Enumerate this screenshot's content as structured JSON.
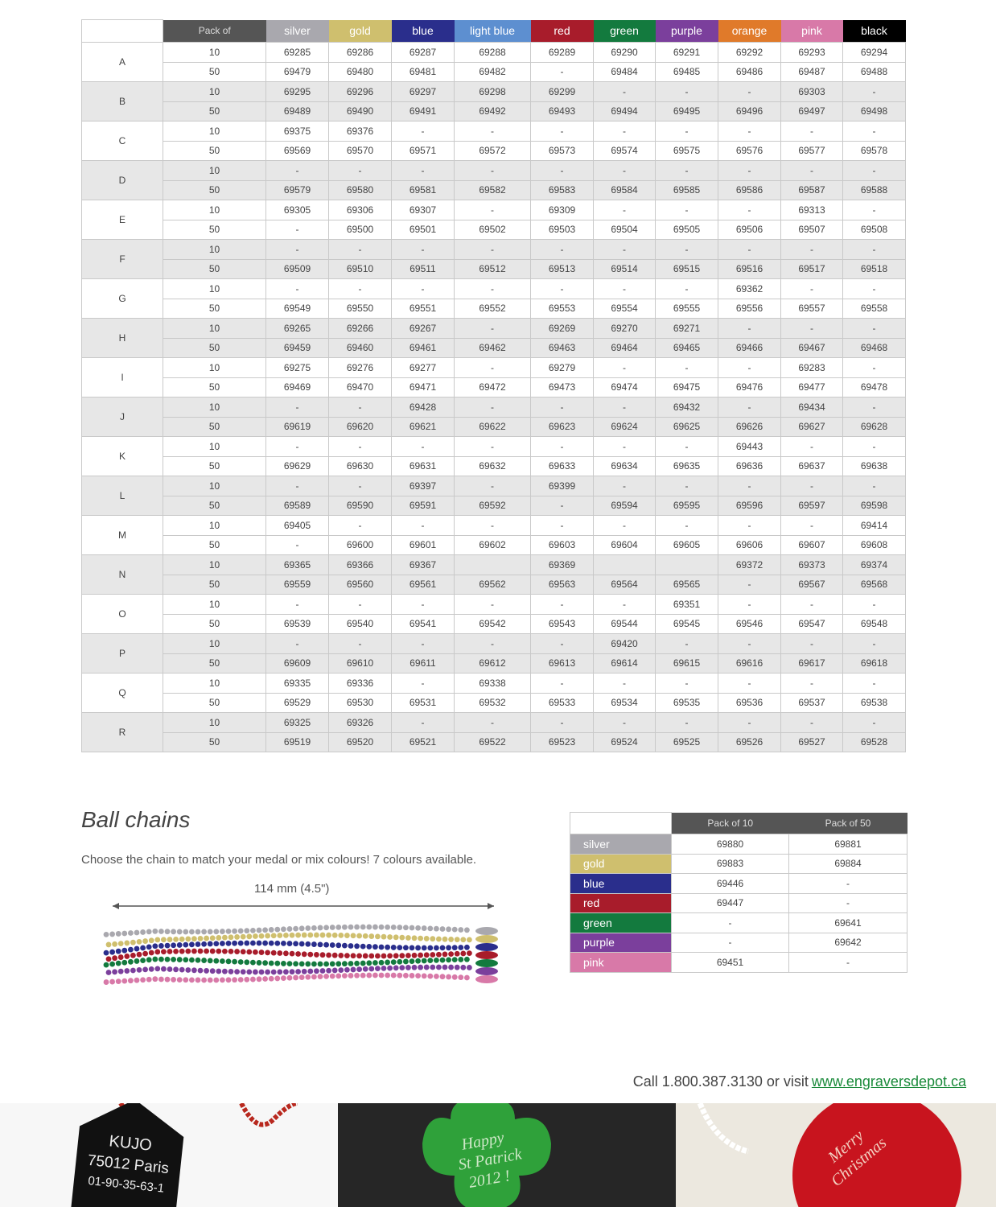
{
  "main_table": {
    "pack_label": "Pack of",
    "columns": [
      {
        "name": "silver",
        "color": "#a9a8ae"
      },
      {
        "name": "gold",
        "color": "#cfbf6e"
      },
      {
        "name": "blue",
        "color": "#2a2e8c"
      },
      {
        "name": "light blue",
        "color": "#5d8fd0"
      },
      {
        "name": "red",
        "color": "#a81c2b"
      },
      {
        "name": "green",
        "color": "#137a3e"
      },
      {
        "name": "purple",
        "color": "#7b3f9c"
      },
      {
        "name": "orange",
        "color": "#e07a2a"
      },
      {
        "name": "pink",
        "color": "#d879a8"
      },
      {
        "name": "black",
        "color": "#000000"
      }
    ],
    "groups": [
      {
        "label": "A",
        "rows": [
          {
            "pack": "10",
            "cells": [
              "69285",
              "69286",
              "69287",
              "69288",
              "69289",
              "69290",
              "69291",
              "69292",
              "69293",
              "69294"
            ]
          },
          {
            "pack": "50",
            "cells": [
              "69479",
              "69480",
              "69481",
              "69482",
              "-",
              "69484",
              "69485",
              "69486",
              "69487",
              "69488"
            ]
          }
        ]
      },
      {
        "label": "B",
        "rows": [
          {
            "pack": "10",
            "cells": [
              "69295",
              "69296",
              "69297",
              "69298",
              "69299",
              "-",
              "-",
              "-",
              "69303",
              "-"
            ]
          },
          {
            "pack": "50",
            "cells": [
              "69489",
              "69490",
              "69491",
              "69492",
              "69493",
              "69494",
              "69495",
              "69496",
              "69497",
              "69498"
            ]
          }
        ]
      },
      {
        "label": "C",
        "rows": [
          {
            "pack": "10",
            "cells": [
              "69375",
              "69376",
              "-",
              "-",
              "-",
              "-",
              "-",
              "-",
              "-",
              "-"
            ]
          },
          {
            "pack": "50",
            "cells": [
              "69569",
              "69570",
              "69571",
              "69572",
              "69573",
              "69574",
              "69575",
              "69576",
              "69577",
              "69578"
            ]
          }
        ]
      },
      {
        "label": "D",
        "rows": [
          {
            "pack": "10",
            "cells": [
              "-",
              "-",
              "-",
              "-",
              "-",
              "-",
              "-",
              "-",
              "-",
              "-"
            ]
          },
          {
            "pack": "50",
            "cells": [
              "69579",
              "69580",
              "69581",
              "69582",
              "69583",
              "69584",
              "69585",
              "69586",
              "69587",
              "69588"
            ]
          }
        ]
      },
      {
        "label": "E",
        "rows": [
          {
            "pack": "10",
            "cells": [
              "69305",
              "69306",
              "69307",
              "-",
              "69309",
              "-",
              "-",
              "-",
              "69313",
              "-"
            ]
          },
          {
            "pack": "50",
            "cells": [
              "-",
              "69500",
              "69501",
              "69502",
              "69503",
              "69504",
              "69505",
              "69506",
              "69507",
              "69508"
            ]
          }
        ]
      },
      {
        "label": "F",
        "rows": [
          {
            "pack": "10",
            "cells": [
              "-",
              "-",
              "-",
              "-",
              "-",
              "-",
              "-",
              "-",
              "-",
              "-"
            ]
          },
          {
            "pack": "50",
            "cells": [
              "69509",
              "69510",
              "69511",
              "69512",
              "69513",
              "69514",
              "69515",
              "69516",
              "69517",
              "69518"
            ]
          }
        ]
      },
      {
        "label": "G",
        "rows": [
          {
            "pack": "10",
            "cells": [
              "-",
              "-",
              "-",
              "-",
              "-",
              "-",
              "-",
              "69362",
              "-",
              "-"
            ]
          },
          {
            "pack": "50",
            "cells": [
              "69549",
              "69550",
              "69551",
              "69552",
              "69553",
              "69554",
              "69555",
              "69556",
              "69557",
              "69558"
            ]
          }
        ]
      },
      {
        "label": "H",
        "rows": [
          {
            "pack": "10",
            "cells": [
              "69265",
              "69266",
              "69267",
              "-",
              "69269",
              "69270",
              "69271",
              "-",
              "-",
              "-"
            ]
          },
          {
            "pack": "50",
            "cells": [
              "69459",
              "69460",
              "69461",
              "69462",
              "69463",
              "69464",
              "69465",
              "69466",
              "69467",
              "69468"
            ]
          }
        ]
      },
      {
        "label": "I",
        "rows": [
          {
            "pack": "10",
            "cells": [
              "69275",
              "69276",
              "69277",
              "-",
              "69279",
              "-",
              "-",
              "-",
              "69283",
              "-"
            ]
          },
          {
            "pack": "50",
            "cells": [
              "69469",
              "69470",
              "69471",
              "69472",
              "69473",
              "69474",
              "69475",
              "69476",
              "69477",
              "69478"
            ]
          }
        ]
      },
      {
        "label": "J",
        "rows": [
          {
            "pack": "10",
            "cells": [
              "-",
              "-",
              "69428",
              "-",
              "-",
              "-",
              "69432",
              "-",
              "69434",
              "-"
            ]
          },
          {
            "pack": "50",
            "cells": [
              "69619",
              "69620",
              "69621",
              "69622",
              "69623",
              "69624",
              "69625",
              "69626",
              "69627",
              "69628"
            ]
          }
        ]
      },
      {
        "label": "K",
        "rows": [
          {
            "pack": "10",
            "cells": [
              "-",
              "-",
              "-",
              "-",
              "-",
              "-",
              "-",
              "69443",
              "-",
              "-"
            ]
          },
          {
            "pack": "50",
            "cells": [
              "69629",
              "69630",
              "69631",
              "69632",
              "69633",
              "69634",
              "69635",
              "69636",
              "69637",
              "69638"
            ]
          }
        ]
      },
      {
        "label": "L",
        "rows": [
          {
            "pack": "10",
            "cells": [
              "-",
              "-",
              "69397",
              "-",
              "69399",
              "-",
              "-",
              "-",
              "-",
              "-"
            ]
          },
          {
            "pack": "50",
            "cells": [
              "69589",
              "69590",
              "69591",
              "69592",
              "-",
              "69594",
              "69595",
              "69596",
              "69597",
              "69598"
            ]
          }
        ]
      },
      {
        "label": "M",
        "rows": [
          {
            "pack": "10",
            "cells": [
              "69405",
              "-",
              "-",
              "-",
              "-",
              "-",
              "-",
              "-",
              "-",
              "69414"
            ]
          },
          {
            "pack": "50",
            "cells": [
              "-",
              "69600",
              "69601",
              "69602",
              "69603",
              "69604",
              "69605",
              "69606",
              "69607",
              "69608"
            ]
          }
        ]
      },
      {
        "label": "N",
        "rows": [
          {
            "pack": "10",
            "cells": [
              "69365",
              "69366",
              "69367",
              null,
              "69369",
              null,
              null,
              "69372",
              "69373",
              "69374"
            ]
          },
          {
            "pack": "50",
            "cells": [
              "69559",
              "69560",
              "69561",
              "69562",
              "69563",
              "69564",
              "69565",
              "-",
              "69567",
              "69568"
            ]
          }
        ]
      },
      {
        "label": "O",
        "rows": [
          {
            "pack": "10",
            "cells": [
              "-",
              "-",
              "-",
              "-",
              "-",
              "-",
              "69351",
              "-",
              "-",
              "-"
            ]
          },
          {
            "pack": "50",
            "cells": [
              "69539",
              "69540",
              "69541",
              "69542",
              "69543",
              "69544",
              "69545",
              "69546",
              "69547",
              "69548"
            ]
          }
        ]
      },
      {
        "label": "P",
        "rows": [
          {
            "pack": "10",
            "cells": [
              "-",
              "-",
              "-",
              "-",
              "-",
              "69420",
              "-",
              "-",
              "-",
              "-"
            ]
          },
          {
            "pack": "50",
            "cells": [
              "69609",
              "69610",
              "69611",
              "69612",
              "69613",
              "69614",
              "69615",
              "69616",
              "69617",
              "69618"
            ]
          }
        ]
      },
      {
        "label": "Q",
        "rows": [
          {
            "pack": "10",
            "cells": [
              "69335",
              "69336",
              "-",
              "69338",
              "-",
              "-",
              "-",
              "-",
              "-",
              "-"
            ]
          },
          {
            "pack": "50",
            "cells": [
              "69529",
              "69530",
              "69531",
              "69532",
              "69533",
              "69534",
              "69535",
              "69536",
              "69537",
              "69538"
            ]
          }
        ]
      },
      {
        "label": "R",
        "rows": [
          {
            "pack": "10",
            "cells": [
              "69325",
              "69326",
              "-",
              "-",
              "-",
              "-",
              "-",
              "-",
              "-",
              "-"
            ]
          },
          {
            "pack": "50",
            "cells": [
              "69519",
              "69520",
              "69521",
              "69522",
              "69523",
              "69524",
              "69525",
              "69526",
              "69527",
              "69528"
            ]
          }
        ]
      }
    ]
  },
  "ball_chains": {
    "title": "Ball chains",
    "description": "Choose the chain to match your medal or mix colours! 7 colours available.",
    "measure": "114 mm (4.5\")",
    "table": {
      "header": [
        "Pack of 10",
        "Pack of 50"
      ],
      "rows": [
        {
          "name": "silver",
          "color": "#a9a8ae",
          "cells": [
            "69880",
            "69881"
          ]
        },
        {
          "name": "gold",
          "color": "#cfbf6e",
          "cells": [
            "69883",
            "69884"
          ]
        },
        {
          "name": "blue",
          "color": "#2a2e8c",
          "cells": [
            "69446",
            "-"
          ]
        },
        {
          "name": "red",
          "color": "#a81c2b",
          "cells": [
            "69447",
            "-"
          ]
        },
        {
          "name": "green",
          "color": "#137a3e",
          "cells": [
            "-",
            "69641"
          ]
        },
        {
          "name": "purple",
          "color": "#7b3f9c",
          "cells": [
            "-",
            "69642"
          ]
        },
        {
          "name": "pink",
          "color": "#d879a8",
          "cells": [
            "69451",
            "-"
          ]
        }
      ]
    }
  },
  "footer": {
    "call": "Call 1.800.387.3130 or visit",
    "link": "www.engraversdepot.ca"
  },
  "photos": [
    {
      "lines": [
        "KUJO",
        "75012 Paris",
        "01-90-35-63-1"
      ]
    },
    {
      "lines": [
        "Happy",
        "St Patrick",
        "2012 !"
      ]
    },
    {
      "lines": [
        "Merry",
        "Christmas"
      ]
    }
  ]
}
